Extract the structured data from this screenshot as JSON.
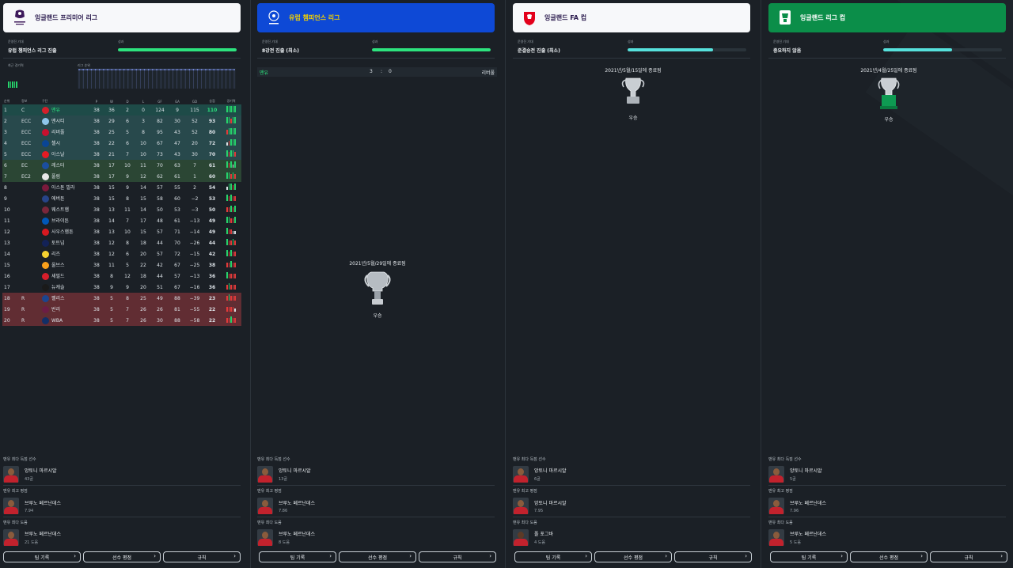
{
  "competitions": [
    {
      "title": "잉글랜드 프리미어 리그",
      "header_color": "#f7f8fa",
      "icon": "premier-league-logo",
      "expectation_label": "운영진 기대",
      "expectation": "유럽 챔피언스 리그 진출",
      "result_label": "성과",
      "result_fill": 1.0,
      "result_color": "#2de37e"
    },
    {
      "title": "유럽 챔피언스 리그",
      "header_color": "#0e49d6",
      "icon": "champions-league-logo",
      "expectation_label": "운영진 기대",
      "expectation": "8강전 진출 (최소)",
      "result_label": "성과",
      "result_fill": 1.0,
      "result_color": "#2de37e"
    },
    {
      "title": "잉글랜드 FA 컵",
      "header_color": "#f7f8fa",
      "icon": "fa-cup-logo",
      "expectation_label": "운영진 기대",
      "expectation": "준결승전 진출 (최소)",
      "result_label": "성과",
      "result_fill": 0.72,
      "result_color": "#56e1dc"
    },
    {
      "title": "잉글랜드 리그 컵",
      "header_color": "#0b8e49",
      "icon": "league-cup-logo",
      "expectation_label": "운영진 기대",
      "expectation": "중요하지 않음",
      "result_label": "성과",
      "result_fill": 0.58,
      "result_color": "#56e1dc"
    }
  ],
  "league": {
    "recent_form_label": "최근 경기력",
    "position_label": "리그 순위",
    "position_history": [
      1,
      1,
      1,
      1,
      1,
      1,
      1,
      1,
      1,
      1,
      1,
      1,
      1,
      1,
      1,
      1,
      1,
      1,
      1,
      1,
      1,
      1,
      1,
      1,
      1,
      1,
      1,
      1,
      1,
      1,
      1,
      1,
      1,
      1,
      1,
      1,
      1,
      1,
      1
    ],
    "headers": [
      "순위",
      "정보",
      "구단",
      "P",
      "W",
      "D",
      "L",
      "GF",
      "GA",
      "GD",
      "승점",
      "경기력"
    ],
    "rows": [
      {
        "pos": "1",
        "info": "C",
        "team": "맨유",
        "p": "38",
        "w": "36",
        "d": "2",
        "l": "0",
        "gf": "124",
        "ga": "9",
        "gd": "115",
        "pts": "110",
        "zone": "cl",
        "crest": "#d4202b",
        "form": "WWWWW"
      },
      {
        "pos": "2",
        "info": "ECC",
        "team": "맨시티",
        "p": "38",
        "w": "29",
        "d": "6",
        "l": "3",
        "gf": "82",
        "ga": "30",
        "gd": "52",
        "pts": "93",
        "zone": "el",
        "crest": "#8ec5ea",
        "form": "WWLWW"
      },
      {
        "pos": "3",
        "info": "ECC",
        "team": "리버풀",
        "p": "38",
        "w": "25",
        "d": "5",
        "l": "8",
        "gf": "95",
        "ga": "43",
        "gd": "52",
        "pts": "80",
        "zone": "el",
        "crest": "#c8102e",
        "form": "LWWWW"
      },
      {
        "pos": "4",
        "info": "ECC",
        "team": "첼시",
        "p": "38",
        "w": "22",
        "d": "6",
        "l": "10",
        "gf": "67",
        "ga": "47",
        "gd": "20",
        "pts": "72",
        "zone": "el",
        "crest": "#0a4595",
        "form": "DLWWW"
      },
      {
        "pos": "5",
        "info": "ECC",
        "team": "아스날",
        "p": "38",
        "w": "21",
        "d": "7",
        "l": "10",
        "gf": "73",
        "ga": "43",
        "gd": "30",
        "pts": "70",
        "zone": "el",
        "crest": "#e51b24",
        "form": "WLWWL"
      },
      {
        "pos": "6",
        "info": "EC",
        "team": "레스터",
        "p": "38",
        "w": "17",
        "d": "10",
        "l": "11",
        "gf": "70",
        "ga": "63",
        "gd": "7",
        "pts": "61",
        "zone": "ec",
        "crest": "#1b4ea0",
        "form": "WLWDW"
      },
      {
        "pos": "7",
        "info": "EC2",
        "team": "풀럼",
        "p": "38",
        "w": "17",
        "d": "9",
        "l": "12",
        "gf": "62",
        "ga": "61",
        "gd": "1",
        "pts": "60",
        "zone": "ec",
        "crest": "#e8e8e8",
        "form": "WWLWL"
      },
      {
        "pos": "8",
        "info": "",
        "team": "아스톤 빌라",
        "p": "38",
        "w": "15",
        "d": "9",
        "l": "14",
        "gf": "57",
        "ga": "55",
        "gd": "2",
        "pts": "54",
        "zone": "",
        "crest": "#7b1a3c",
        "form": "DWWLW"
      },
      {
        "pos": "9",
        "info": "",
        "team": "에버튼",
        "p": "38",
        "w": "15",
        "d": "8",
        "l": "15",
        "gf": "58",
        "ga": "60",
        "gd": "−2",
        "pts": "53",
        "zone": "",
        "crest": "#274488",
        "form": "WLWLL"
      },
      {
        "pos": "10",
        "info": "",
        "team": "웨스트햄",
        "p": "38",
        "w": "13",
        "d": "11",
        "l": "14",
        "gf": "50",
        "ga": "53",
        "gd": "−3",
        "pts": "50",
        "zone": "",
        "crest": "#7a263a",
        "form": "LLWLW"
      },
      {
        "pos": "11",
        "info": "",
        "team": "브라이튼",
        "p": "38",
        "w": "14",
        "d": "7",
        "l": "17",
        "gf": "48",
        "ga": "61",
        "gd": "−13",
        "pts": "49",
        "zone": "",
        "crest": "#0057b8",
        "form": "WWLLW"
      },
      {
        "pos": "12",
        "info": "",
        "team": "사우스햄튼",
        "p": "38",
        "w": "13",
        "d": "10",
        "l": "15",
        "gf": "57",
        "ga": "71",
        "gd": "−14",
        "pts": "49",
        "zone": "",
        "crest": "#d71920",
        "form": "WLLDD"
      },
      {
        "pos": "13",
        "info": "",
        "team": "토트넘",
        "p": "38",
        "w": "12",
        "d": "8",
        "l": "18",
        "gf": "44",
        "ga": "70",
        "gd": "−26",
        "pts": "44",
        "zone": "",
        "crest": "#132257",
        "form": "WLLWL"
      },
      {
        "pos": "14",
        "info": "",
        "team": "리즈",
        "p": "38",
        "w": "12",
        "d": "6",
        "l": "20",
        "gf": "57",
        "ga": "72",
        "gd": "−15",
        "pts": "42",
        "zone": "",
        "crest": "#f5d130",
        "form": "WLWLL"
      },
      {
        "pos": "15",
        "info": "",
        "team": "울브스",
        "p": "38",
        "w": "11",
        "d": "5",
        "l": "22",
        "gf": "42",
        "ga": "67",
        "gd": "−25",
        "pts": "38",
        "zone": "",
        "crest": "#f9a01b",
        "form": "LLWLL"
      },
      {
        "pos": "16",
        "info": "",
        "team": "셰필드",
        "p": "38",
        "w": "8",
        "d": "12",
        "l": "18",
        "gf": "44",
        "ga": "57",
        "gd": "−13",
        "pts": "36",
        "zone": "",
        "crest": "#d61e2b",
        "form": "WLLLL"
      },
      {
        "pos": "17",
        "info": "",
        "team": "뉴캐슬",
        "p": "38",
        "w": "9",
        "d": "9",
        "l": "20",
        "gf": "51",
        "ga": "67",
        "gd": "−16",
        "pts": "36",
        "zone": "",
        "crest": "#1a1a1a",
        "form": "LWLLL"
      },
      {
        "pos": "18",
        "info": "R",
        "team": "팰리스",
        "p": "38",
        "w": "5",
        "d": "8",
        "l": "25",
        "gf": "49",
        "ga": "88",
        "gd": "−39",
        "pts": "23",
        "zone": "re",
        "crest": "#1b458f",
        "form": "LWLLL"
      },
      {
        "pos": "19",
        "info": "R",
        "team": "번리",
        "p": "38",
        "w": "5",
        "d": "7",
        "l": "26",
        "gf": "26",
        "ga": "81",
        "gd": "−55",
        "pts": "22",
        "zone": "re",
        "crest": "#6c1d45",
        "form": "LLLLD"
      },
      {
        "pos": "20",
        "info": "R",
        "team": "WBA",
        "p": "38",
        "w": "5",
        "d": "7",
        "l": "26",
        "gf": "30",
        "ga": "88",
        "gd": "−58",
        "pts": "22",
        "zone": "re",
        "crest": "#122f67",
        "form": "LLWLL"
      }
    ]
  },
  "ucl_match": {
    "home": "맨유",
    "score_home": "3",
    "sep": ":",
    "score_away": "0",
    "away": "리버풀"
  },
  "finals": [
    {
      "date": "2021년/5월/29일에 종료됨",
      "result": "우승"
    },
    {
      "date": "2021년/5월/15일에 종료됨",
      "result": "우승"
    },
    {
      "date": "2021년/4월/25일에 종료됨",
      "result": "우승"
    }
  ],
  "stats": [
    {
      "top_scorer_title": "맨유 최다 득점 선수",
      "top_scorer_name": "앙토니 마르시알",
      "top_scorer_value": "43골",
      "best_rating_title": "맨유 최고 평점",
      "best_rating_name": "브루노 페르난데스",
      "best_rating_value": "7.94",
      "top_assist_title": "맨유 최다 도움",
      "top_assist_name": "브루노 페르난데스",
      "top_assist_value": "21 도움"
    },
    {
      "top_scorer_title": "맨유 최다 득점 선수",
      "top_scorer_name": "앙토니 마르시알",
      "top_scorer_value": "13골",
      "best_rating_title": "맨유 최고 평점",
      "best_rating_name": "브루노 페르난데스",
      "best_rating_value": "7.86",
      "top_assist_title": "맨유 최다 도움",
      "top_assist_name": "브루노 페르난데스",
      "top_assist_value": "8 도움"
    },
    {
      "top_scorer_title": "맨유 최다 득점 선수",
      "top_scorer_name": "앙토니 마르시알",
      "top_scorer_value": "6골",
      "best_rating_title": "맨유 최고 평점",
      "best_rating_name": "앙토니 마르시알",
      "best_rating_value": "7.95",
      "top_assist_title": "맨유 최다 도움",
      "top_assist_name": "폴 포그바",
      "top_assist_value": "4 도움"
    },
    {
      "top_scorer_title": "맨유 최다 득점 선수",
      "top_scorer_name": "앙토니 마르시알",
      "top_scorer_value": "5골",
      "best_rating_title": "맨유 최고 평점",
      "best_rating_name": "브루노 페르난데스",
      "best_rating_value": "7.96",
      "top_assist_title": "맨유 최다 도움",
      "top_assist_name": "브루노 페르난데스",
      "top_assist_value": "5 도움"
    }
  ],
  "buttons": {
    "records": "팀 기록",
    "ratings": "선수 평점",
    "rules": "규칙"
  }
}
